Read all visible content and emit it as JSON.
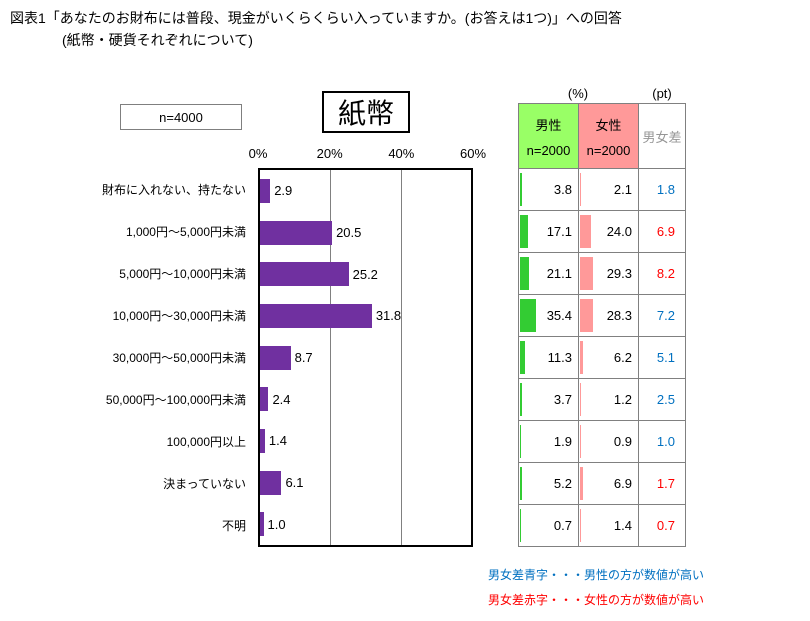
{
  "title": {
    "line1": "図表1「あなたのお財布には普段、現金がいくらくらい入っていますか。(お答えは1つ)」への回答",
    "line2": "(紙幣・硬貨それぞれについて)"
  },
  "chart": {
    "sample_label": "n=4000",
    "chart_title": "紙幣",
    "axis_ticks": [
      "0%",
      "20%",
      "40%",
      "60%"
    ]
  },
  "table": {
    "percent_unit_label": "(%)",
    "pt_unit_label": "(pt)",
    "male_header": "男性",
    "male_n": "n=2000",
    "female_header": "女性",
    "female_n": "n=2000",
    "diff_header": "男女差"
  },
  "notes": {
    "blue_note": "男女差青字・・・男性の方が数値が高い",
    "red_note": "男女差赤字・・・女性の方が数値が高い"
  },
  "colors": {
    "overall_bar": "#7030A0",
    "male_header_bg": "#99FF66",
    "female_header_bg": "#FF9999",
    "male_mini_bar": "#33CC33",
    "female_mini_bar": "#FF9999",
    "diff_header_text": "#969696",
    "diff_male_higher": "#0070C0",
    "diff_female_higher": "#FF0000",
    "grid": "#808080"
  },
  "chart_data": {
    "type": "bar",
    "orientation": "horizontal",
    "title": "紙幣",
    "sample_size": "n=4000",
    "categories": [
      "財布に入れない、持たない",
      "1,000円〜5,000円未満",
      "5,000円〜10,000円未満",
      "10,000円〜30,000円未満",
      "30,000円〜50,000円未満",
      "50,000円〜100,000円未満",
      "100,000円以上",
      "決まっていない",
      "不明"
    ],
    "series": [
      {
        "name": "全体 n=4000",
        "values": [
          2.9,
          20.5,
          25.2,
          31.8,
          8.7,
          2.4,
          1.4,
          6.1,
          1.0
        ]
      },
      {
        "name": "男性 n=2000",
        "values": [
          3.8,
          17.1,
          21.1,
          35.4,
          11.3,
          3.7,
          1.9,
          5.2,
          0.7
        ]
      },
      {
        "name": "女性 n=2000",
        "values": [
          2.1,
          24.0,
          29.3,
          28.3,
          6.2,
          1.2,
          0.9,
          6.9,
          1.4
        ]
      }
    ],
    "diff_pt": [
      1.8,
      6.9,
      8.2,
      7.2,
      5.1,
      2.5,
      1.0,
      1.7,
      0.7
    ],
    "diff_higher": [
      "male",
      "female",
      "female",
      "male",
      "male",
      "male",
      "male",
      "female",
      "female"
    ],
    "xlim": [
      0,
      60
    ],
    "x_ticks": [
      0,
      20,
      40,
      60
    ]
  }
}
